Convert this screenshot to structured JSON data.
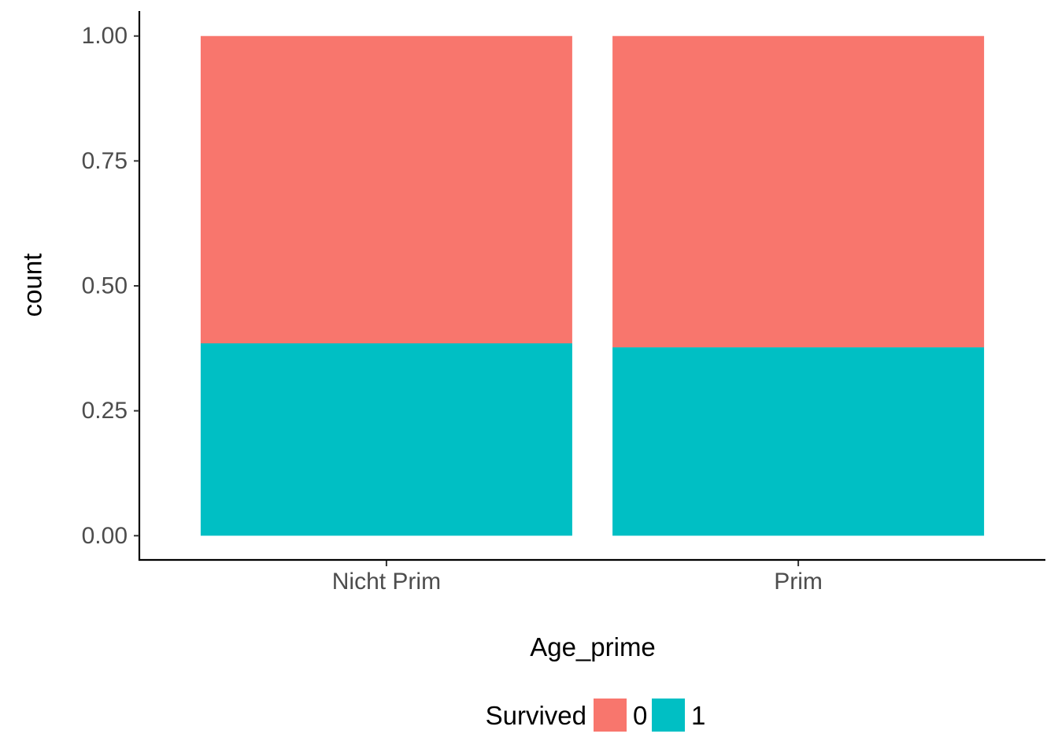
{
  "chart_data": {
    "type": "bar",
    "stacked": true,
    "categories": [
      "Nicht Prim",
      "Prim"
    ],
    "series": [
      {
        "name": "0",
        "color": "#F8766D",
        "values": [
          0.615,
          0.623
        ]
      },
      {
        "name": "1",
        "color": "#00BFC4",
        "values": [
          0.385,
          0.377
        ]
      }
    ],
    "stack_order": [
      "1",
      "0"
    ],
    "xlabel": "Age_prime",
    "ylabel": "count",
    "ylim": [
      -0.05,
      1.05
    ],
    "yticks": [
      0,
      0.25,
      0.5,
      0.75,
      1.0
    ],
    "ytick_labels": [
      "0.00",
      "0.25",
      "0.50",
      "0.75",
      "1.00"
    ],
    "grid": false,
    "legend": {
      "title": "Survived",
      "placement": "bottom",
      "entries": [
        "0",
        "1"
      ]
    }
  }
}
